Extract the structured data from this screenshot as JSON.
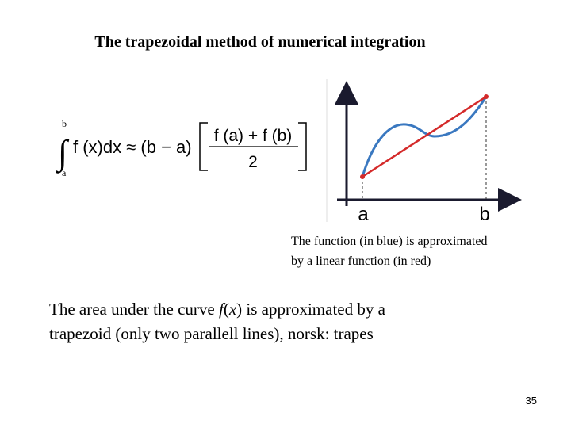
{
  "title": "The trapezoidal method of numerical integration",
  "formula": {
    "upper_limit": "b",
    "lower_limit": "a",
    "integral": "∫",
    "lhs": "f (x)dx ≈ (b − a)",
    "numerator": "f (a) + f (b)",
    "denominator": "2"
  },
  "graph": {
    "label_a": "a",
    "label_b": "b"
  },
  "caption": {
    "lines": [
      "The function (in blue) is approximated",
      "by a linear function (in red)"
    ]
  },
  "body": {
    "line1": [
      "The area under the curve ",
      "f",
      "(",
      "x",
      ") is approximated by a"
    ],
    "line2": "trapezoid (only two parallell lines), norsk: trapes"
  },
  "page_number": "35"
}
